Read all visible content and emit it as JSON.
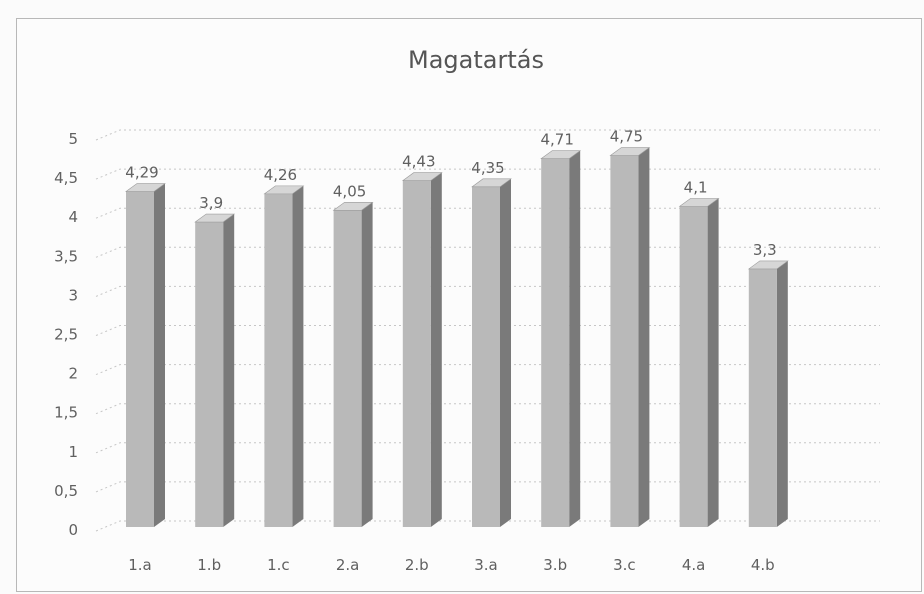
{
  "chart_data": {
    "type": "bar",
    "title": "Magatartás",
    "categories": [
      "1.a",
      "1.b",
      "1.c",
      "2.a",
      "2.b",
      "3.a",
      "3.b",
      "3.c",
      "4.a",
      "4.b"
    ],
    "values": [
      4.29,
      3.9,
      4.26,
      4.05,
      4.43,
      4.35,
      4.71,
      4.75,
      4.1,
      3.3
    ],
    "data_labels": [
      "4,29",
      "3,9",
      "4,26",
      "4,05",
      "4,43",
      "4,35",
      "4,71",
      "4,75",
      "4,1",
      "3,3"
    ],
    "y_ticks": [
      "0",
      "0,5",
      "1",
      "1,5",
      "2",
      "2,5",
      "3",
      "3,5",
      "4",
      "4,5",
      "5"
    ],
    "y_tick_values": [
      0,
      0.5,
      1,
      1.5,
      2,
      2.5,
      3,
      3.5,
      4,
      4.5,
      5
    ],
    "ylim": [
      0,
      5
    ],
    "grid": true,
    "legend": "none",
    "bar_style": "3d-column",
    "colors": {
      "bar_front": "#b9b9b9",
      "bar_side": "#7a7a7a",
      "bar_top": "#d6d6d6",
      "text": "#606060",
      "grid": "#c6c6c6"
    }
  }
}
